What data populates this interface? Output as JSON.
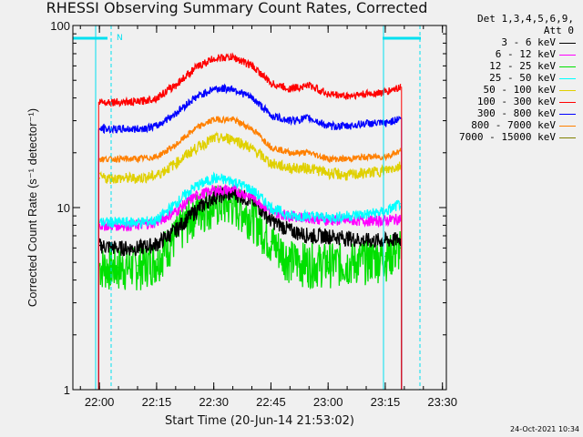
{
  "title": "RHESSI Observing Summary Count Rates, Corrected",
  "legend": {
    "detector_header": "Det 1,3,4,5,6,9,",
    "attenuator": "Att 0"
  },
  "footer_stamp": "24-Oct-2021 10:34",
  "colors": {
    "background": "#f0f0f0",
    "axes": "#000000",
    "markers": "#00e0f0"
  },
  "markers": {
    "flag_text": "N",
    "night_start_label": "22:03",
    "night_end_label": "23:27"
  },
  "chart_data": {
    "type": "line",
    "title": "RHESSI Observing Summary Count Rates, Corrected",
    "xlabel": "Start Time (20-Jun-14 21:53:02)",
    "ylabel": "Corrected Count Rate (s⁻¹ detector⁻¹)",
    "yscale": "log",
    "ylim": [
      1,
      100
    ],
    "yticks": [
      "1",
      "10",
      "100"
    ],
    "xlim_minutes": [
      0,
      98
    ],
    "xticks": [
      "22:00",
      "22:15",
      "22:30",
      "22:45",
      "23:00",
      "23:15",
      "23:30"
    ],
    "x_minutes": [
      7,
      12,
      17,
      22,
      27,
      32,
      37,
      42,
      47,
      52,
      57,
      62,
      67,
      72,
      77,
      82,
      86
    ],
    "series": [
      {
        "name": "3 - 6 keV",
        "color": "#000000",
        "values": [
          6.2,
          6.0,
          6.0,
          6.3,
          7.5,
          9.5,
          11.5,
          12,
          11,
          8.5,
          7.5,
          7,
          7,
          6.8,
          6.6,
          6.6,
          6.7
        ]
      },
      {
        "name": "6 - 12 keV",
        "color": "#ff00ff",
        "values": [
          8,
          8,
          8,
          8.3,
          9.5,
          11.5,
          12.5,
          12.5,
          11.5,
          9.5,
          9,
          8.8,
          8.5,
          8.5,
          8.5,
          8.5,
          8.7
        ]
      },
      {
        "name": "12 - 25 keV",
        "color": "#00e000",
        "values": [
          4.8,
          4.7,
          4.8,
          5.2,
          7,
          9.5,
          10.5,
          10.5,
          9,
          6.5,
          5.2,
          5,
          5,
          5,
          5.2,
          5.4,
          6
        ]
      },
      {
        "name": "25 - 50 keV",
        "color": "#00ffff",
        "values": [
          8.3,
          8.3,
          8.3,
          8.5,
          10.5,
          13,
          14.5,
          14,
          12.5,
          10,
          9,
          9,
          8.8,
          9,
          9.2,
          9.5,
          10.5
        ]
      },
      {
        "name": "50 - 100 keV",
        "color": "#e0d000",
        "values": [
          14.5,
          14.5,
          14.5,
          15,
          17.5,
          21,
          24,
          24,
          21,
          17.5,
          16.5,
          16.5,
          15.5,
          15,
          15.5,
          16,
          17
        ]
      },
      {
        "name": "100 - 300 keV",
        "color": "#ff0000",
        "values": [
          38,
          38,
          38,
          40,
          47,
          58,
          66,
          67,
          60,
          48,
          45,
          47,
          42,
          41,
          42,
          43,
          46
        ]
      },
      {
        "name": "300 - 800 keV",
        "color": "#0000ff",
        "values": [
          27,
          27,
          27,
          28,
          33,
          40,
          45,
          45,
          40,
          32,
          30,
          31,
          28,
          28,
          29,
          29,
          31
        ]
      },
      {
        "name": "800 - 7000 keV",
        "color": "#ff8000",
        "values": [
          18.5,
          18.5,
          18.5,
          19,
          22,
          27,
          30.5,
          30.5,
          27,
          21.5,
          20,
          20,
          18.5,
          18.5,
          19,
          19,
          20.5
        ]
      },
      {
        "name": "7000 - 15000 keV",
        "color": "#808000",
        "values": []
      }
    ]
  }
}
